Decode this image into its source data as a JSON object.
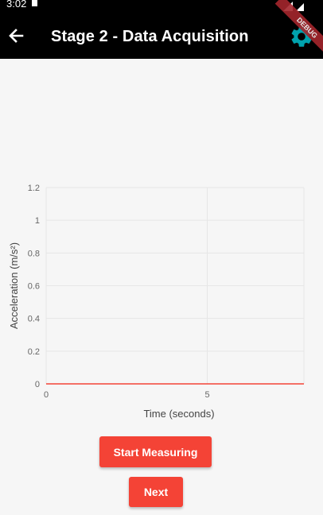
{
  "status_bar": {
    "time": "3:02"
  },
  "app_bar": {
    "title": "Stage 2 - Data Acquisition",
    "back_icon": "arrow-back-icon",
    "settings_icon": "gear-icon",
    "debug_banner": "DEBUG",
    "accent_color": "#00a2ad",
    "background_color": "#000000"
  },
  "chart_data": {
    "type": "line",
    "xlabel": "Time (seconds)",
    "ylabel": "Acceleration (m/s²)",
    "x_ticks": [
      "0",
      "5"
    ],
    "y_ticks": [
      "0",
      "0.2",
      "0.4",
      "0.6",
      "0.8",
      "1",
      "1.2"
    ],
    "xlim": [
      0,
      8
    ],
    "ylim": [
      0,
      1.2
    ],
    "grid": true,
    "series": [
      {
        "x": [],
        "y": [],
        "color": "#f44336"
      }
    ]
  },
  "actions": {
    "start_label": "Start Measuring",
    "next_label": "Next",
    "button_color": "#f44336"
  }
}
